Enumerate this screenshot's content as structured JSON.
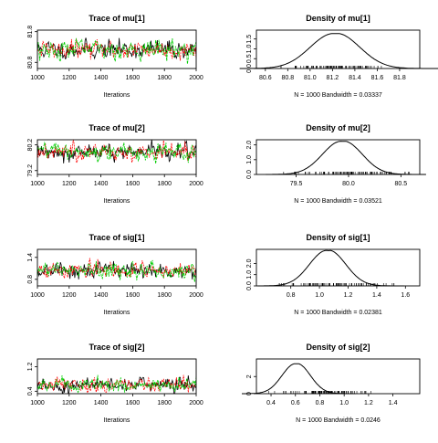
{
  "chart_data": [
    {
      "type": "line",
      "title": "Trace of mu[1]",
      "xlabel": "Iterations",
      "xlim": [
        1000,
        2000
      ],
      "ylim": [
        80.6,
        81.85
      ],
      "x_ticks": [
        1000,
        1200,
        1400,
        1600,
        1800,
        2000
      ],
      "y_ticks": [
        "80.8",
        "81.8"
      ],
      "y_tick_values": [
        80.8,
        81.8
      ],
      "trace": {
        "center": 81.22,
        "sd": 0.14,
        "seed": 11
      },
      "series_colors": [
        "#000000",
        "#ff0000",
        "#00cd00"
      ]
    },
    {
      "type": "area",
      "title": "Density of mu[1]",
      "xlabel": "N = 1000   Bandwidth = 0.03337",
      "xlim": [
        80.52,
        81.98
      ],
      "ylim": [
        0,
        1.95
      ],
      "x_ticks": [
        "80.6",
        "80.8",
        "81.0",
        "81.2",
        "81.4",
        "81.6",
        "81.8"
      ],
      "x_tick_values": [
        80.6,
        80.8,
        81.0,
        81.2,
        81.4,
        81.6,
        81.8
      ],
      "y_ticks": [
        "0.0",
        "0.5",
        "1.0",
        "1.5"
      ],
      "y_tick_values": [
        0,
        0.5,
        1.0,
        1.5
      ],
      "density": {
        "mean": 81.21,
        "sd": 0.21,
        "peak": 1.78
      },
      "rug": {
        "from": 80.74,
        "to": 81.72,
        "seed": 21
      }
    },
    {
      "type": "line",
      "title": "Trace of mu[2]",
      "xlabel": "Iterations",
      "xlim": [
        1000,
        2000
      ],
      "ylim": [
        79.05,
        80.4
      ],
      "x_ticks": [
        1000,
        1200,
        1400,
        1600,
        1800,
        2000
      ],
      "y_ticks": [
        "79.2",
        "80.2"
      ],
      "y_tick_values": [
        79.2,
        80.2
      ],
      "trace": {
        "center": 79.93,
        "sd": 0.15,
        "seed": 12
      },
      "series_colors": [
        "#000000",
        "#ff0000",
        "#00cd00"
      ]
    },
    {
      "type": "area",
      "title": "Density of mu[2]",
      "xlabel": "N = 1000   Bandwidth = 0.03521",
      "xlim": [
        79.12,
        80.68
      ],
      "ylim": [
        0,
        2.35
      ],
      "x_ticks": [
        "79.5",
        "80.0",
        "80.5"
      ],
      "x_tick_values": [
        79.5,
        80.0,
        80.5
      ],
      "y_ticks": [
        "0.0",
        "1.0",
        "2.0"
      ],
      "y_tick_values": [
        0,
        1.0,
        2.0
      ],
      "density": {
        "mean": 79.93,
        "sd": 0.18,
        "peak": 2.25
      },
      "rug": {
        "from": 79.38,
        "to": 80.58,
        "seed": 22
      }
    },
    {
      "type": "line",
      "title": "Trace of sig[1]",
      "xlabel": "Iterations",
      "xlim": [
        1000,
        2000
      ],
      "ylim": [
        0.62,
        1.62
      ],
      "x_ticks": [
        1000,
        1200,
        1400,
        1600,
        1800,
        2000
      ],
      "y_ticks": [
        "0.8",
        "1.4"
      ],
      "y_tick_values": [
        0.8,
        1.4
      ],
      "trace": {
        "center": 1.04,
        "sd": 0.1,
        "seed": 13
      },
      "series_colors": [
        "#000000",
        "#ff0000",
        "#00cd00"
      ]
    },
    {
      "type": "area",
      "title": "Density of sig[1]",
      "xlabel": "N = 1000   Bandwidth = 0.02381",
      "xlim": [
        0.56,
        1.7
      ],
      "ylim": [
        0,
        3.25
      ],
      "x_ticks": [
        "0.8",
        "1.0",
        "1.2",
        "1.4",
        "1.6"
      ],
      "x_tick_values": [
        0.8,
        1.0,
        1.2,
        1.4,
        1.6
      ],
      "y_ticks": [
        "0.0",
        "1.0",
        "2.0"
      ],
      "y_tick_values": [
        0,
        1.0,
        2.0
      ],
      "density": {
        "mean": 1.05,
        "sd": 0.12,
        "peak": 3.15
      },
      "rug": {
        "from": 0.72,
        "to": 1.52,
        "seed": 23
      }
    },
    {
      "type": "line",
      "title": "Trace of sig[2]",
      "xlabel": "Iterations",
      "xlim": [
        1000,
        2000
      ],
      "ylim": [
        0.32,
        1.45
      ],
      "x_ticks": [
        1000,
        1200,
        1400,
        1600,
        1800,
        2000
      ],
      "y_ticks": [
        "0.4",
        "1.2"
      ],
      "y_tick_values": [
        0.4,
        1.2
      ],
      "trace": {
        "center": 0.62,
        "sd": 0.11,
        "seed": 14
      },
      "series_colors": [
        "#000000",
        "#ff0000",
        "#00cd00"
      ]
    },
    {
      "type": "area",
      "title": "Density of sig[2]",
      "xlabel": "N = 1000   Bandwidth = 0.0246",
      "xlim": [
        0.28,
        1.62
      ],
      "ylim": [
        0,
        4.05
      ],
      "x_ticks": [
        "0.4",
        "0.6",
        "0.8",
        "1.0",
        "1.2",
        "1.4"
      ],
      "x_tick_values": [
        0.4,
        0.6,
        0.8,
        1.0,
        1.2,
        1.4
      ],
      "y_ticks": [
        "0",
        "2"
      ],
      "y_tick_values": [
        0,
        2
      ],
      "density": {
        "mean": 0.6,
        "sd": 0.11,
        "peak": 3.5
      },
      "rug": {
        "from": 0.38,
        "to": 1.22,
        "seed": 24
      }
    }
  ]
}
